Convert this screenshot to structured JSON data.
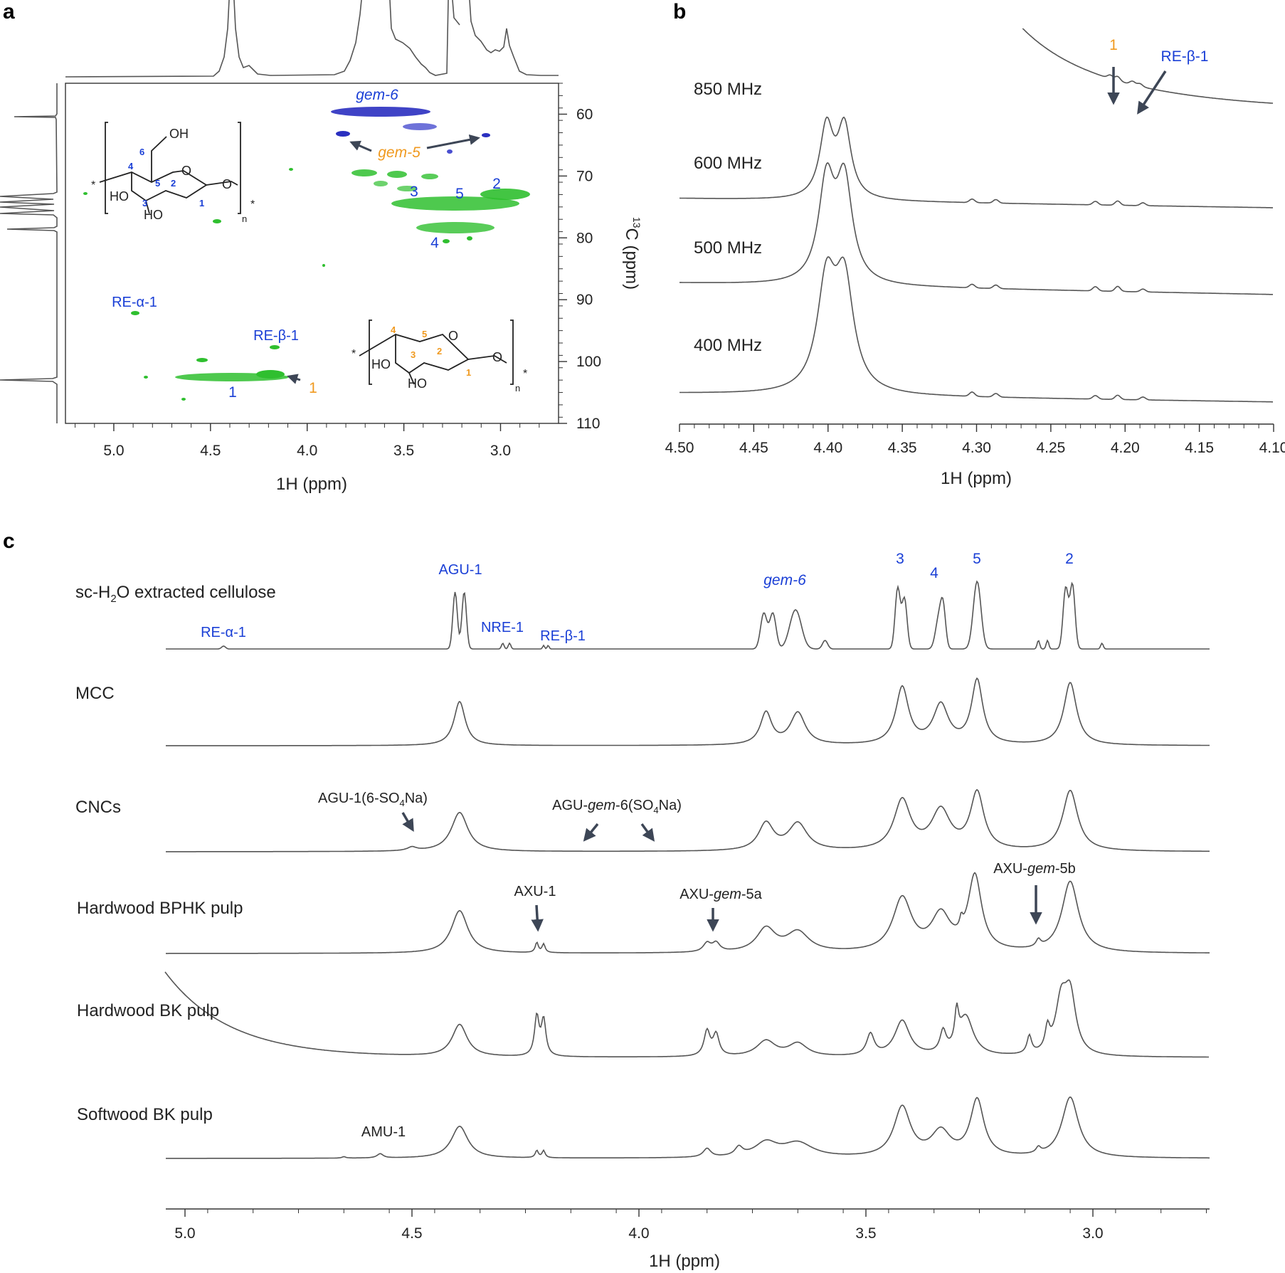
{
  "colors": {
    "blue_label": "#1a3fd6",
    "orange_label": "#f09a20",
    "contour_green": "#2fbf2f",
    "contour_blue": "#2a2fc0",
    "trace": "#555555",
    "arrow": "#3d4656"
  },
  "chart_data": [
    {
      "panel": "a",
      "type": "heatmap",
      "subtype": "2D HSQC contour",
      "xlabel": "1H (ppm)",
      "ylabel_sup": "13",
      "ylabel": "C (ppm)",
      "xlim": [
        5.25,
        2.7
      ],
      "ylim": [
        55,
        110
      ],
      "xticks": [
        "5.0",
        "4.5",
        "4.0",
        "3.5",
        "3.0"
      ],
      "yticks": [
        "60",
        "70",
        "80",
        "90",
        "100",
        "110"
      ],
      "xtick_values": [
        5.0,
        4.5,
        4.0,
        3.5,
        3.0
      ],
      "ytick_values": [
        60,
        70,
        80,
        90,
        100,
        110
      ],
      "peaks": [
        {
          "label": "gem-6",
          "h": [
            3.55,
            3.75
          ],
          "c": 60.5,
          "color": "blue"
        },
        {
          "label": "gem-5",
          "h": [
            3.7,
            3.15
          ],
          "c": 63,
          "color": "blue"
        },
        {
          "label": "3",
          "h": 3.47,
          "c": 74.5,
          "color": "green"
        },
        {
          "label": "5",
          "h": 3.27,
          "c": 74.5,
          "color": "green"
        },
        {
          "label": "2",
          "h": 3.0,
          "c": 73,
          "color": "green"
        },
        {
          "label": "4",
          "h": 3.35,
          "c": 78.5,
          "color": "green"
        },
        {
          "label": "RE-α-1",
          "h": 4.92,
          "c": 92,
          "color": "green"
        },
        {
          "label": "RE-β-1",
          "h": 4.2,
          "c": 97.5,
          "color": "green"
        },
        {
          "label": "1",
          "h": 4.45,
          "c": 102.5,
          "color": "green"
        }
      ],
      "labels": {
        "gem6": "gem-6",
        "gem5": "gem-5",
        "c3": "3",
        "c5": "5",
        "c2": "2",
        "c4": "4",
        "rea": "RE-α-1",
        "reb": "RE-β-1",
        "c1": "1",
        "c1o": "1"
      },
      "structure_top": {
        "oh6": "OH",
        "n6": "6",
        "n4": "4",
        "n5": "5",
        "n2": "2",
        "n3": "3",
        "n1": "1",
        "ring_o": "O",
        "link_o": "O",
        "ho3": "HO",
        "ho2": "HO",
        "star": "*",
        "n": "n"
      },
      "structure_bottom": {
        "n4": "4",
        "n5": "5",
        "n3": "3",
        "n2": "2",
        "n1": "1",
        "ring_o": "O",
        "link_o": "O",
        "ho3": "HO",
        "ho2": "HO",
        "star": "*",
        "n": "n"
      }
    },
    {
      "panel": "b",
      "type": "line",
      "xlabel": "1H (ppm)",
      "xlim": [
        4.5,
        4.1
      ],
      "xticks": [
        "4.50",
        "4.45",
        "4.40",
        "4.35",
        "4.30",
        "4.25",
        "4.20",
        "4.15",
        "4.10"
      ],
      "xtick_values": [
        4.5,
        4.45,
        4.4,
        4.35,
        4.3,
        4.25,
        4.2,
        4.15,
        4.1
      ],
      "series": [
        {
          "name": "850 MHz",
          "offset": 0
        },
        {
          "name": "600 MHz",
          "offset": 1
        },
        {
          "name": "500 MHz",
          "offset": 2
        },
        {
          "name": "400 MHz",
          "offset": 3
        }
      ],
      "peaks_ppm": [
        4.395,
        4.305,
        4.29,
        4.22,
        4.205,
        4.19
      ],
      "annotations": {
        "a1": "1",
        "a2": "RE-β-1"
      }
    },
    {
      "panel": "c",
      "type": "line",
      "xlabel": "1H (ppm)",
      "xlim": [
        5.05,
        2.75
      ],
      "xticks": [
        "5.0",
        "4.5",
        "4.0",
        "3.5",
        "3.0"
      ],
      "xtick_values": [
        5.0,
        4.5,
        4.0,
        3.5,
        3.0
      ],
      "series": [
        {
          "name_parts": [
            "sc-H",
            "2",
            "O extracted cellulose"
          ]
        },
        {
          "name": "MCC"
        },
        {
          "name": "CNCs"
        },
        {
          "name": "Hardwood BPHK pulp"
        },
        {
          "name": "Hardwood BK pulp"
        },
        {
          "name": "Softwood BK pulp"
        }
      ],
      "peak_labels": {
        "rea": "RE-α-1",
        "agu1": "AGU-1",
        "nre1": "NRE-1",
        "reb": "RE-β-1",
        "gem6": "gem-6",
        "p3": "3",
        "p4": "4",
        "p5": "5",
        "p2": "2",
        "agu_so4_a": "AGU-1(6-SO",
        "agu_so4_sub": "4",
        "agu_so4_b": "Na)",
        "agu_gem_a": "AGU-",
        "agu_gem_i": "gem",
        "agu_gem_b": "-6(SO",
        "agu_gem_sub": "4",
        "agu_gem_c": "Na)",
        "axu1": "AXU-1",
        "axu5a_a": "AXU-",
        "axu5a_i": "gem",
        "axu5a_b": "-5a",
        "axu5b_a": "AXU-",
        "axu5b_i": "gem",
        "axu5b_b": "-5b",
        "amu1": "AMU-1"
      }
    }
  ],
  "panels": {
    "a": "a",
    "b": "b",
    "c": "c"
  }
}
